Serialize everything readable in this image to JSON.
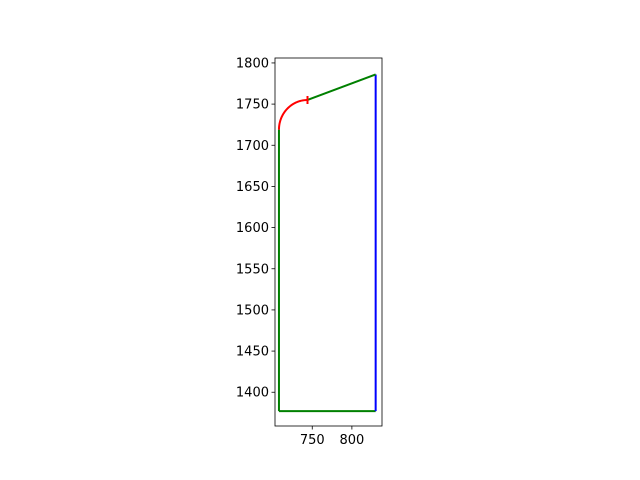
{
  "chart_data": {
    "type": "line",
    "title": "",
    "xlabel": "",
    "ylabel": "",
    "xlim": [
      703,
      838
    ],
    "ylim": [
      1359,
      1806
    ],
    "x_ticks": [
      750,
      800
    ],
    "y_ticks": [
      1400,
      1450,
      1500,
      1550,
      1600,
      1650,
      1700,
      1750,
      1800
    ],
    "grid": false,
    "segments": [
      {
        "name": "left-wall",
        "color": "#008000",
        "points": [
          [
            708,
            1377
          ],
          [
            708,
            1719
          ]
        ]
      },
      {
        "name": "bottom-wall",
        "color": "#008000",
        "points": [
          [
            708,
            1377
          ],
          [
            830,
            1377
          ]
        ]
      },
      {
        "name": "right-wall",
        "color": "#0000ff",
        "points": [
          [
            830,
            1377
          ],
          [
            830,
            1786
          ]
        ]
      },
      {
        "name": "top-slope",
        "color": "#008000",
        "points": [
          [
            744,
            1755
          ],
          [
            830,
            1786
          ]
        ]
      }
    ],
    "arc": {
      "name": "corner-arc",
      "color": "#ff0000",
      "center": [
        744,
        1719
      ],
      "radius": 36,
      "start_deg": 180,
      "end_deg": 90
    },
    "marker": {
      "name": "arc-end-tick",
      "color": "#ff0000",
      "point": [
        744,
        1755
      ]
    }
  }
}
